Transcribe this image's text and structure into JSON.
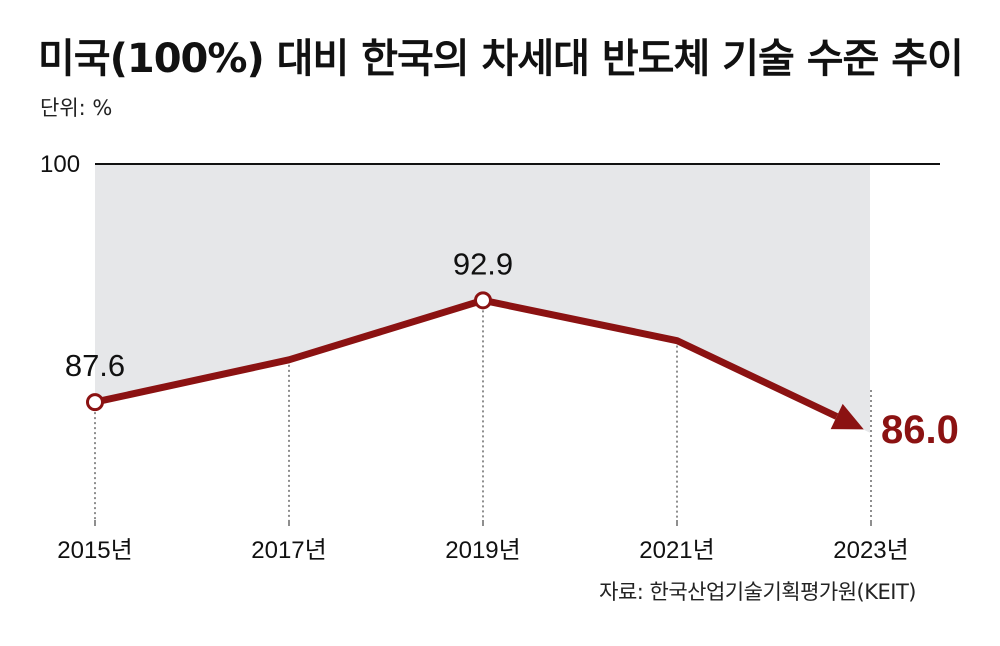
{
  "title": "미국(100%) 대비 한국의 차세대 반도체 기술 수준 추이",
  "unit_label": "단위: %",
  "source": "자료: 한국산업기술기획평가원(KEIT)",
  "colors": {
    "line": "#8b1212",
    "band": "#e6e7e9",
    "axis": "#111111",
    "marker_fill": "#ffffff"
  },
  "chart_data": {
    "type": "line",
    "title": "미국(100%) 대비 한국의 차세대 반도체 기술 수준 추이",
    "ylabel": "단위: %",
    "reference_value": 100,
    "reference_label": "100",
    "categories": [
      "2015년",
      "2017년",
      "2019년",
      "2021년",
      "2023년"
    ],
    "series": [
      {
        "values": [
          87.6,
          89.8,
          92.9,
          90.8,
          86.0
        ]
      }
    ],
    "data_labels": [
      {
        "index": 0,
        "text": "87.6",
        "marker": true
      },
      {
        "index": 2,
        "text": "92.9",
        "marker": true
      },
      {
        "index": 4,
        "text": "86.0",
        "arrow": true,
        "emphasis": true
      }
    ],
    "grid": false,
    "legend": "none"
  }
}
